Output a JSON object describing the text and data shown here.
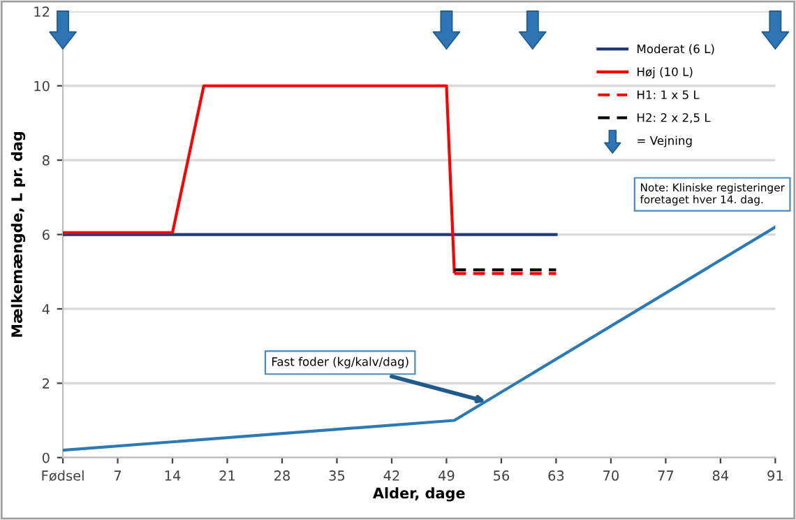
{
  "chart_data": {
    "type": "line",
    "xlabel": "Alder, dage",
    "ylabel": "Mælkemængde, L pr. dag",
    "xlim": [
      0,
      91
    ],
    "ylim": [
      0,
      12
    ],
    "xticks": [
      {
        "value": 0,
        "label": "Fødsel"
      },
      7,
      14,
      21,
      28,
      35,
      42,
      49,
      56,
      63,
      70,
      77,
      84,
      91
    ],
    "yticks": [
      0,
      2,
      4,
      6,
      8,
      10,
      12
    ],
    "grid": "y",
    "legend": "top right",
    "series": [
      {
        "name": "Moderat (6 L)",
        "color": "#1f3a7a",
        "x": [
          0,
          63
        ],
        "values": [
          6,
          6
        ]
      },
      {
        "name": "Høj (10 L)",
        "color": "#ff0000",
        "x": [
          0,
          14,
          18,
          49,
          50
        ],
        "values": [
          6.05,
          6.05,
          10,
          10,
          5
        ]
      },
      {
        "name": "H1: 1 x 5 L",
        "color": "#ff0000",
        "line_style": "dashed",
        "x": [
          50,
          63
        ],
        "values": [
          4.95,
          4.95
        ]
      },
      {
        "name": "H2: 2 x 2,5 L",
        "color": "#000000",
        "line_style": "dashed",
        "x": [
          50,
          63
        ],
        "values": [
          5.05,
          5.05
        ]
      },
      {
        "name": "= Vejning",
        "type": "scatter",
        "marker": "triangle",
        "color": "#2e75b6",
        "x": [
          0,
          49,
          60,
          91
        ],
        "values": [
          11.5,
          11.5,
          11.5,
          11.5
        ]
      },
      {
        "color": "#2a7ab8",
        "x": [
          0,
          50,
          91
        ],
        "values": [
          0.2,
          1.0,
          6.2
        ]
      }
    ],
    "annotations": [
      {
        "text": "Fast foder (kg/kalv/dag)",
        "x": 54,
        "y": 1.51
      },
      "Note: Kliniske registeringer\nforetaget hver 14. dag."
    ]
  }
}
